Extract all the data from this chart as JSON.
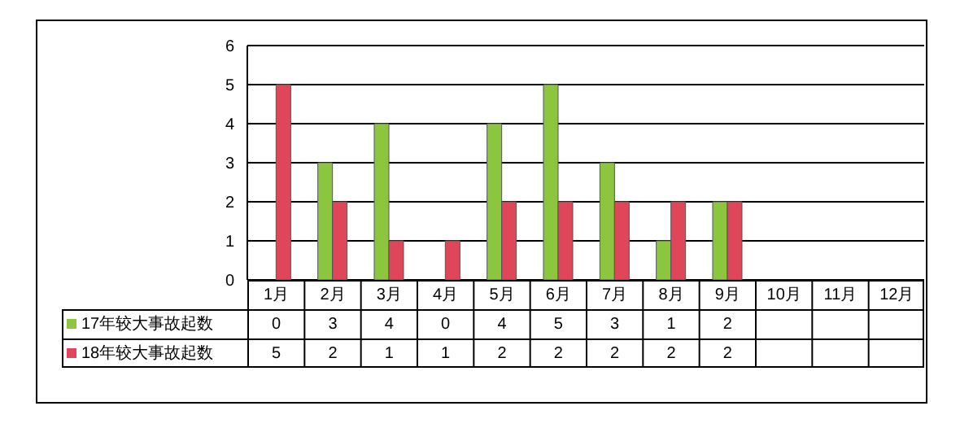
{
  "chart_data": {
    "type": "bar",
    "categories": [
      "1月",
      "2月",
      "3月",
      "4月",
      "5月",
      "6月",
      "7月",
      "8月",
      "9月",
      "10月",
      "11月",
      "12月"
    ],
    "series": [
      {
        "name": "17年较大事故起数",
        "color": "#8cc63e",
        "values": [
          0,
          3,
          4,
          0,
          4,
          5,
          3,
          1,
          2,
          null,
          null,
          null
        ]
      },
      {
        "name": "18年较大事故起数",
        "color": "#e0465a",
        "values": [
          5,
          2,
          1,
          1,
          2,
          2,
          2,
          2,
          2,
          null,
          null,
          null
        ]
      }
    ],
    "ylim": [
      0,
      6
    ],
    "yticks": [
      0,
      1,
      2,
      3,
      4,
      5,
      6
    ],
    "grid": "y",
    "legend": "bottom",
    "data_labels": true
  }
}
